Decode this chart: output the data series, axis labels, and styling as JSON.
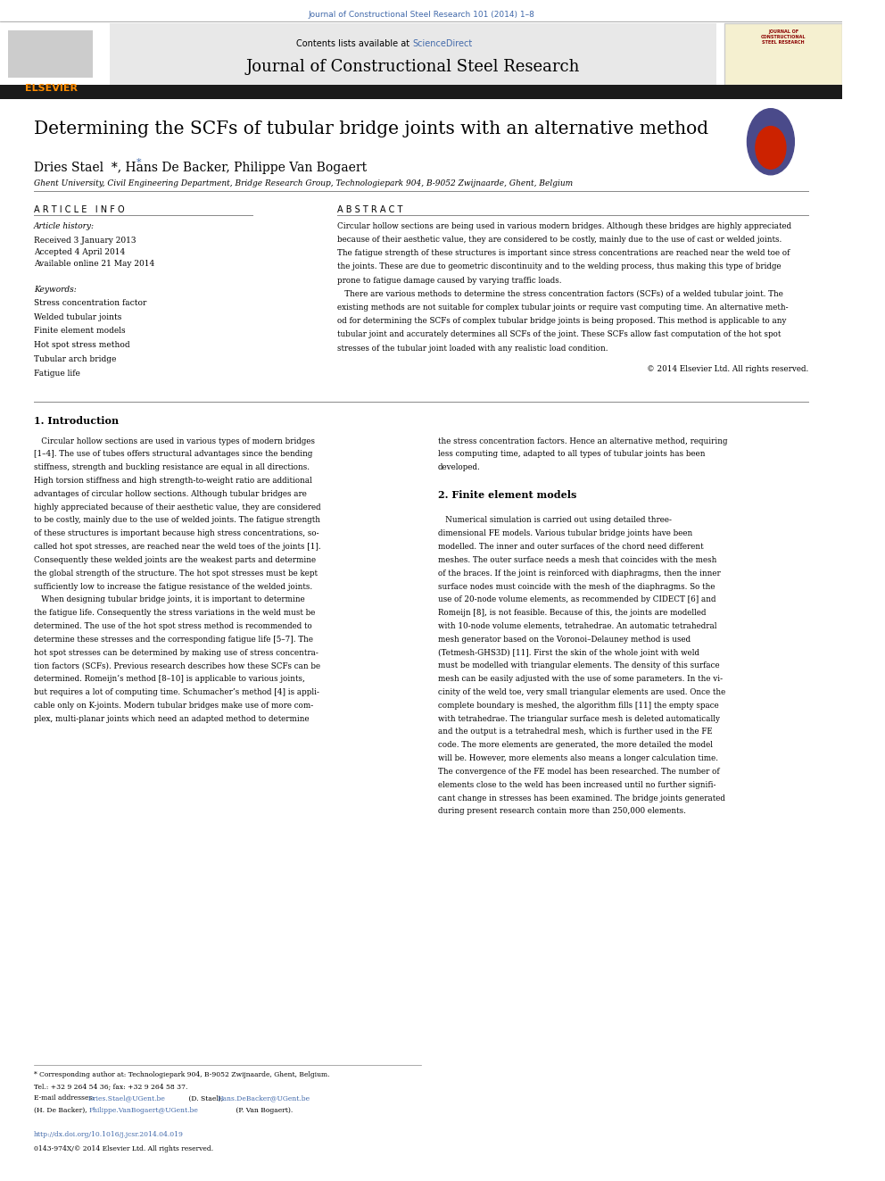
{
  "page_width": 9.92,
  "page_height": 13.23,
  "dpi": 100,
  "background_color": "#ffffff",
  "top_journal_text": "Journal of Constructional Steel Research 101 (2014) 1–8",
  "top_journal_color": "#4169aa",
  "header_bg_color": "#e8e8e8",
  "header_contents_text": "Contents lists available at ",
  "header_sciencedirect_text": "ScienceDirect",
  "header_sciencedirect_color": "#4169aa",
  "header_journal_title": "Journal of Constructional Steel Research",
  "elsevier_color": "#ff8c00",
  "black_bar_color": "#1a1a1a",
  "paper_title": "Determining the SCFs of tubular bridge joints with an alternative method",
  "authors": "Dries Stael  *, Hans De Backer, Philippe Van Bogaert",
  "affiliation": "Ghent University, Civil Engineering Department, Bridge Research Group, Technologiepark 904, B-9052 Zwijnaarde, Ghent, Belgium",
  "article_info_header": "A R T I C L E   I N F O",
  "abstract_header": "A B S T R A C T",
  "article_history_label": "Article history:",
  "received": "Received 3 January 2013",
  "accepted": "Accepted 4 April 2014",
  "available": "Available online 21 May 2014",
  "keywords_label": "Keywords:",
  "keywords": [
    "Stress concentration factor",
    "Welded tubular joints",
    "Finite element models",
    "Hot spot stress method",
    "Tubular arch bridge",
    "Fatigue life"
  ],
  "abstract_text": "Circular hollow sections are being used in various modern bridges. Although these bridges are highly appreciated because of their aesthetic value, they are considered to be costly, mainly due to the use of cast or welded joints. The fatigue strength of these structures is important since stress concentrations are reached near the weld toe of the joints. These are due to geometric discontinuity and to the welding process, thus making this type of bridge prone to fatigue damage caused by varying traffic loads.\n   There are various methods to determine the stress concentration factors (SCFs) of a welded tubular joint. The existing methods are not suitable for complex tubular joints or require vast computing time. An alternative method for determining the SCFs of complex tubular bridge joints is being proposed. This method is applicable to any tubular joint and accurately determines all SCFs of the joint. These SCFs allow fast computation of the hot spot stresses of the tubular joint loaded with any realistic load condition.",
  "copyright_text": "© 2014 Elsevier Ltd. All rights reserved.",
  "section1_title": "1. Introduction",
  "section1_col1": "Circular hollow sections are used in various types of modern bridges [1–4]. The use of tubes offers structural advantages since the bending stiffness, strength and buckling resistance are equal in all directions. High torsion stiffness and high strength-to-weight ratio are additional advantages of circular hollow sections. Although tubular bridges are highly appreciated because of their aesthetic value, they are considered to be costly, mainly due to the use of welded joints. The fatigue strength of these structures is important because high stress concentrations, so-called hot spot stresses, are reached near the weld toes of the joints [1]. Consequently these welded joints are the weakest parts and determine the global strength of the structure. The hot spot stresses must be kept sufficiently low to increase the fatigue resistance of the welded joints.\n   When designing tubular bridge joints, it is important to determine the fatigue life. Consequently the stress variations in the weld must be determined. The use of the hot spot stress method is recommended to determine these stresses and the corresponding fatigue life [5–7]. The hot spot stresses can be determined by making use of stress concentration factors (SCFs). Previous research describes how these SCFs can be determined. Romeijn’s method [8–10] is applicable to various joints, but requires a lot of computing time. Schumacher’s method [4] is applicable only on K-joints. Modern tubular bridges make use of more complex, multi-planar joints which need an adapted method to determine",
  "section1_col2": "the stress concentration factors. Hence an alternative method, requiring less computing time, adapted to all types of tubular joints has been developed.\n\n2. Finite element models\n\n   Numerical simulation is carried out using detailed three-dimensional FE models. Various tubular bridge joints have been modelled. The inner and outer surfaces of the chord need different meshes. The outer surface needs a mesh that coincides with the mesh of the braces. If the joint is reinforced with diaphragms, then the inner surface nodes must coincide with the mesh of the diaphragms. So the use of 20-node volume elements, as recommended by CIDECT [6] and Romeijn [8], is not feasible. Because of this, the joints are modelled with 10-node volume elements, tetrahedrae. An automatic tetrahedral mesh generator based on the Voronoi–Delauney method is used (Tetmesh-GHS3D) [11]. First the skin of the whole joint with weld must be modelled with triangular elements. The density of this surface mesh can be easily adjusted with the use of some parameters. In the vicinity of the weld toe, very small triangular elements are used. Once the complete boundary is meshed, the algorithm fills [11] the empty space with tetrahedrae. The triangular surface mesh is deleted automatically and the output is a tetrahedral mesh, which is further used in the FE code. The more elements are generated, the more detailed the model will be. However, more elements also means a longer calculation time. The convergence of the FE model has been researched. The number of elements close to the weld has been increased until no further significant change in stresses has been examined. The bridge joints generated during present research contain more than 250,000 elements.",
  "footnote_corresponding": "* Corresponding author at: Technologiepark 904, B-9052 Zwijnaarde, Ghent, Belgium.",
  "footnote_tel": "Tel.: +32 9 264 54 36; fax: +32 9 264 58 37.",
  "footnote_email_label": "E-mail addresses: ",
  "footnote_email1": "Dries.Stael@UGent.be",
  "footnote_name1": " (D. Stael),",
  "footnote_email2": "Hans.DeBacker@UGent.be",
  "footnote_name2": "",
  "footnote_line3": "(H. De Backer),",
  "footnote_email3": "Philippe.VanBogaert@UGent.be",
  "footnote_name3": " (P. Van Bogaert).",
  "doi_text": "http://dx.doi.org/10.1016/j.jcsr.2014.04.019",
  "issn_text": "0143-974X/© 2014 Elsevier Ltd. All rights reserved.",
  "link_color": "#4169aa"
}
